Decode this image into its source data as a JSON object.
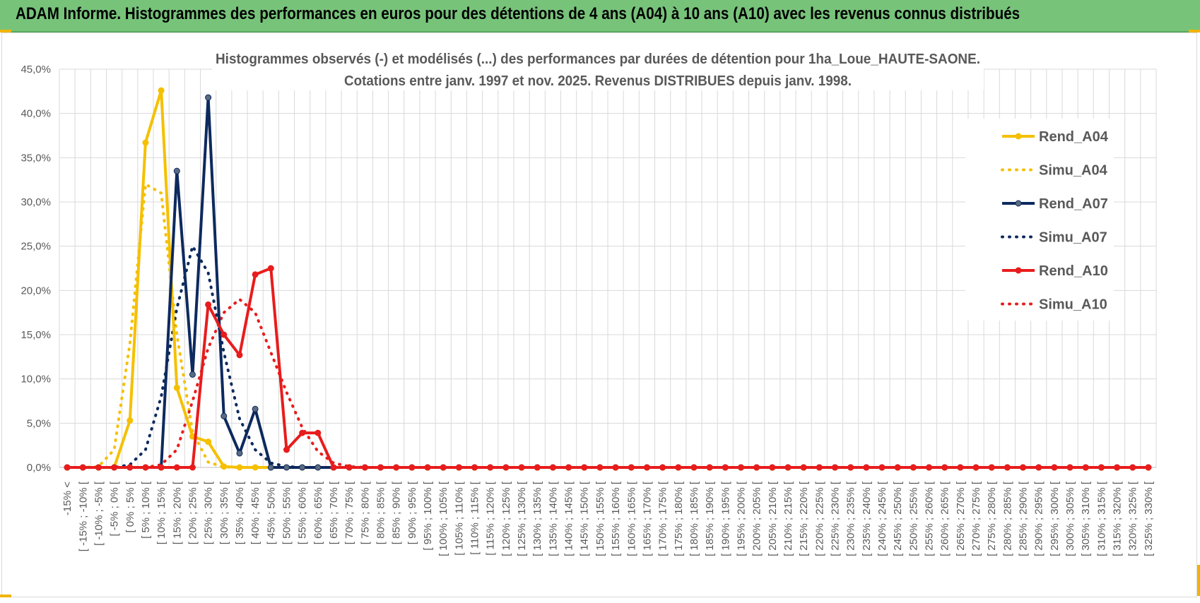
{
  "banner": {
    "title": "ADAM Informe. Histogrammes des performances en euros pour des détentions de 4 ans (A04) à 10 ans (A10) avec les revenus connus distribués"
  },
  "chart_data": {
    "type": "line",
    "title": "Histogrammes observés (-) et modélisés (...) des performances par durées de détention pour 1ha_Loue_HAUTE-SAONE.",
    "subtitle": "Cotations entre janv. 1997 et nov. 2025. Revenus DISTRIBUES depuis janv. 1998.",
    "xlabel": "",
    "ylabel": "",
    "ylim": [
      0,
      45
    ],
    "yticks": [
      "0,0%",
      "5,0%",
      "10,0%",
      "15,0%",
      "20,0%",
      "25,0%",
      "30,0%",
      "35,0%",
      "40,0%",
      "45,0%"
    ],
    "categories": [
      "-15% <",
      "[ -15% ; -10% [",
      "[ -10% ; -5% [",
      "[ -5% ; 0% [",
      "[ 0% ; 5% [",
      "[ 5% ; 10% [",
      "[ 10% ; 15% [",
      "[ 15% ; 20% [",
      "[ 20% ; 25% [",
      "[ 25% ; 30% [",
      "[ 30% ; 35% [",
      "[ 35% ; 40% [",
      "[ 40% ; 45% [",
      "[ 45% ; 50% [",
      "[ 50% ; 55% [",
      "[ 55% ; 60% [",
      "[ 60% ; 65% [",
      "[ 65% ; 70% [",
      "[ 70% ; 75% [",
      "[ 75% ; 80% [",
      "[ 80% ; 85% [",
      "[ 85% ; 90% [",
      "[ 90% ; 95% [",
      "[ 95% ; 100% [",
      "[ 100% ; 105% [",
      "[ 105% ; 110% [",
      "[ 110% ; 115% [",
      "[ 115% ; 120% [",
      "[ 120% ; 125% [",
      "[ 125% ; 130% [",
      "[ 130% ; 135% [",
      "[ 135% ; 140% [",
      "[ 140% ; 145% [",
      "[ 145% ; 150% [",
      "[ 150% ; 155% [",
      "[ 155% ; 160% [",
      "[ 160% ; 165% [",
      "[ 165% ; 170% [",
      "[ 170% ; 175% [",
      "[ 175% ; 180% [",
      "[ 180% ; 185% [",
      "[ 185% ; 190% [",
      "[ 190% ; 195% [",
      "[ 195% ; 200% [",
      "[ 200% ; 205% [",
      "[ 205% ; 210% [",
      "[ 210% ; 215% [",
      "[ 215% ; 220% [",
      "[ 220% ; 225% [",
      "[ 225% ; 230% [",
      "[ 230% ; 235% [",
      "[ 235% ; 240% [",
      "[ 240% ; 245% [",
      "[ 245% ; 250% [",
      "[ 250% ; 255% [",
      "[ 255% ; 260% [",
      "[ 260% ; 265% [",
      "[ 265% ; 270% [",
      "[ 270% ; 275% [",
      "[ 275% ; 280% [",
      "[ 280% ; 285% [",
      "[ 285% ; 290% [",
      "[ 290% ; 295% [",
      "[ 295% ; 300% [",
      "[ 300% ; 305% [",
      "[ 305% ; 310% [",
      "[ 310% ; 315% [",
      "[ 315% ; 320% [",
      "[ 320% ; 325% [",
      "[ 325% ; 330% ["
    ],
    "series": [
      {
        "name": "Rend_A04",
        "style": "solid",
        "color": "#f5c000",
        "marker": true,
        "values": [
          0,
          0,
          0,
          0,
          5.3,
          36.7,
          42.6,
          9.0,
          3.5,
          2.9,
          0.1,
          0,
          0,
          0,
          0,
          0,
          0,
          0,
          0,
          0,
          0,
          0,
          0,
          0,
          0,
          0,
          0,
          0,
          0,
          0,
          0,
          0,
          0,
          0,
          0,
          0,
          0,
          0,
          0,
          0,
          0,
          0,
          0,
          0,
          0,
          0,
          0,
          0,
          0,
          0,
          0,
          0,
          0,
          0,
          0,
          0,
          0,
          0,
          0,
          0,
          0,
          0,
          0,
          0,
          0,
          0,
          0,
          0,
          0,
          0
        ]
      },
      {
        "name": "Simu_A04",
        "style": "dotted",
        "color": "#f5c000",
        "marker": false,
        "values": [
          0,
          0,
          0.1,
          2.0,
          14.0,
          32.0,
          31.0,
          15.0,
          4.0,
          0.6,
          0.05,
          0,
          0,
          0,
          0,
          0,
          0,
          0,
          0,
          0,
          0,
          0,
          0,
          0,
          0,
          0,
          0,
          0,
          0,
          0,
          0,
          0,
          0,
          0,
          0,
          0,
          0,
          0,
          0,
          0,
          0,
          0,
          0,
          0,
          0,
          0,
          0,
          0,
          0,
          0,
          0,
          0,
          0,
          0,
          0,
          0,
          0,
          0,
          0,
          0,
          0,
          0,
          0,
          0,
          0,
          0,
          0,
          0,
          0,
          0
        ]
      },
      {
        "name": "Rend_A07",
        "style": "solid",
        "color": "#0d2a5e",
        "marker": true,
        "values": [
          0,
          0,
          0,
          0,
          0,
          0,
          0,
          33.5,
          10.5,
          41.8,
          5.8,
          1.6,
          6.6,
          0,
          0,
          0,
          0,
          0,
          0,
          0,
          0,
          0,
          0,
          0,
          0,
          0,
          0,
          0,
          0,
          0,
          0,
          0,
          0,
          0,
          0,
          0,
          0,
          0,
          0,
          0,
          0,
          0,
          0,
          0,
          0,
          0,
          0,
          0,
          0,
          0,
          0,
          0,
          0,
          0,
          0,
          0,
          0,
          0,
          0,
          0,
          0,
          0,
          0,
          0,
          0,
          0,
          0,
          0,
          0,
          0
        ]
      },
      {
        "name": "Simu_A07",
        "style": "dotted",
        "color": "#0d2a5e",
        "marker": false,
        "values": [
          0,
          0,
          0,
          0,
          0.3,
          2.0,
          8.0,
          18.0,
          25.0,
          22.0,
          13.0,
          5.5,
          2.0,
          0.5,
          0.1,
          0,
          0,
          0,
          0,
          0,
          0,
          0,
          0,
          0,
          0,
          0,
          0,
          0,
          0,
          0,
          0,
          0,
          0,
          0,
          0,
          0,
          0,
          0,
          0,
          0,
          0,
          0,
          0,
          0,
          0,
          0,
          0,
          0,
          0,
          0,
          0,
          0,
          0,
          0,
          0,
          0,
          0,
          0,
          0,
          0,
          0,
          0,
          0,
          0,
          0,
          0,
          0,
          0,
          0,
          0
        ]
      },
      {
        "name": "Rend_A10",
        "style": "solid",
        "color": "#e81c1c",
        "marker": true,
        "values": [
          0,
          0,
          0,
          0,
          0,
          0,
          0,
          0,
          0,
          18.4,
          15.0,
          12.7,
          21.8,
          22.5,
          2.0,
          3.9,
          3.9,
          0,
          0,
          0,
          0,
          0,
          0,
          0,
          0,
          0,
          0,
          0,
          0,
          0,
          0,
          0,
          0,
          0,
          0,
          0,
          0,
          0,
          0,
          0,
          0,
          0,
          0,
          0,
          0,
          0,
          0,
          0,
          0,
          0,
          0,
          0,
          0,
          0,
          0,
          0,
          0,
          0,
          0,
          0,
          0,
          0,
          0,
          0,
          0,
          0,
          0,
          0,
          0,
          0
        ]
      },
      {
        "name": "Simu_A10",
        "style": "dotted",
        "color": "#e81c1c",
        "marker": false,
        "values": [
          0,
          0,
          0,
          0,
          0,
          0,
          0.3,
          2.0,
          7.5,
          13.5,
          17.5,
          19.0,
          17.5,
          13.0,
          8.5,
          4.5,
          1.8,
          0.5,
          0.1,
          0,
          0,
          0,
          0,
          0,
          0,
          0,
          0,
          0,
          0,
          0,
          0,
          0,
          0,
          0,
          0,
          0,
          0,
          0,
          0,
          0,
          0,
          0,
          0,
          0,
          0,
          0,
          0,
          0,
          0,
          0,
          0,
          0,
          0,
          0,
          0,
          0,
          0,
          0,
          0,
          0,
          0,
          0,
          0,
          0,
          0,
          0,
          0,
          0,
          0,
          0
        ]
      }
    ],
    "grid": true,
    "legend": "right"
  }
}
